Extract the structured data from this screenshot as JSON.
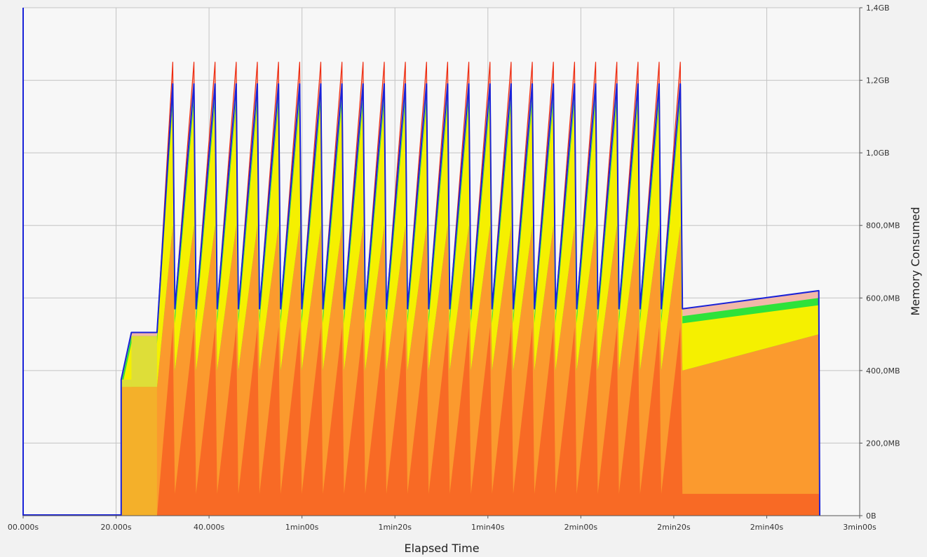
{
  "chart_data": {
    "type": "area",
    "xlabel": "Elapsed Time",
    "ylabel": "Memory Consumed",
    "x_unit": "seconds",
    "y_unit": "MB",
    "xlim": [
      0,
      180
    ],
    "ylim": [
      0,
      1400
    ],
    "x_ticks": [
      {
        "value": 0,
        "label": "00.000s"
      },
      {
        "value": 20,
        "label": "20.000s"
      },
      {
        "value": 40,
        "label": "40.000s"
      },
      {
        "value": 60,
        "label": "1min00s"
      },
      {
        "value": 80,
        "label": "1min20s"
      },
      {
        "value": 100,
        "label": "1min40s"
      },
      {
        "value": 120,
        "label": "2min00s"
      },
      {
        "value": 140,
        "label": "2min20s"
      },
      {
        "value": 160,
        "label": "2min40s"
      },
      {
        "value": 180,
        "label": "3min00s"
      }
    ],
    "y_ticks": [
      {
        "value": 0,
        "label": "0B"
      },
      {
        "value": 200,
        "label": "200,0MB"
      },
      {
        "value": 400,
        "label": "400,0MB"
      },
      {
        "value": 600,
        "label": "600,0MB"
      },
      {
        "value": 800,
        "label": "800,0MB"
      },
      {
        "value": 1000,
        "label": "1,0GB"
      },
      {
        "value": 1200,
        "label": "1,2GB"
      },
      {
        "value": 1400,
        "label": "1,4GB"
      }
    ],
    "grid": true,
    "legend": "none",
    "startup": {
      "start": 21.1,
      "step1_end": 23.3,
      "step1_total": 375,
      "step1_base": 350,
      "plateau_end": 28.8,
      "plateau_total": 505,
      "plateau_inner": 495,
      "plateau_base": 355
    },
    "cycles": {
      "first_peak": 32.2,
      "period": 4.55,
      "count": 25,
      "end": 171.4,
      "trough_total": 570,
      "peak_total": 1190,
      "red_peak": 1250,
      "green_band": 550,
      "yellow_base_trough": 400,
      "yellow_base_peak": 800,
      "inner_orange_trough": 60,
      "inner_orange_peak": 520,
      "final_total": 620
    },
    "series": [
      {
        "key": "red_outline",
        "color": "#ee2b10"
      },
      {
        "key": "pink_fill",
        "color": "#f2b8a8"
      },
      {
        "key": "green",
        "color": "#2ee23a"
      },
      {
        "key": "yellow",
        "color": "#f5f000"
      },
      {
        "key": "yellow_light",
        "color": "#dede38"
      },
      {
        "key": "orange",
        "color": "#fb9a2e"
      },
      {
        "key": "orange_light",
        "color": "#f4b02a"
      },
      {
        "key": "orange_dark",
        "color": "#f86a25"
      },
      {
        "key": "blue_total",
        "color": "#1a22d8"
      }
    ]
  }
}
